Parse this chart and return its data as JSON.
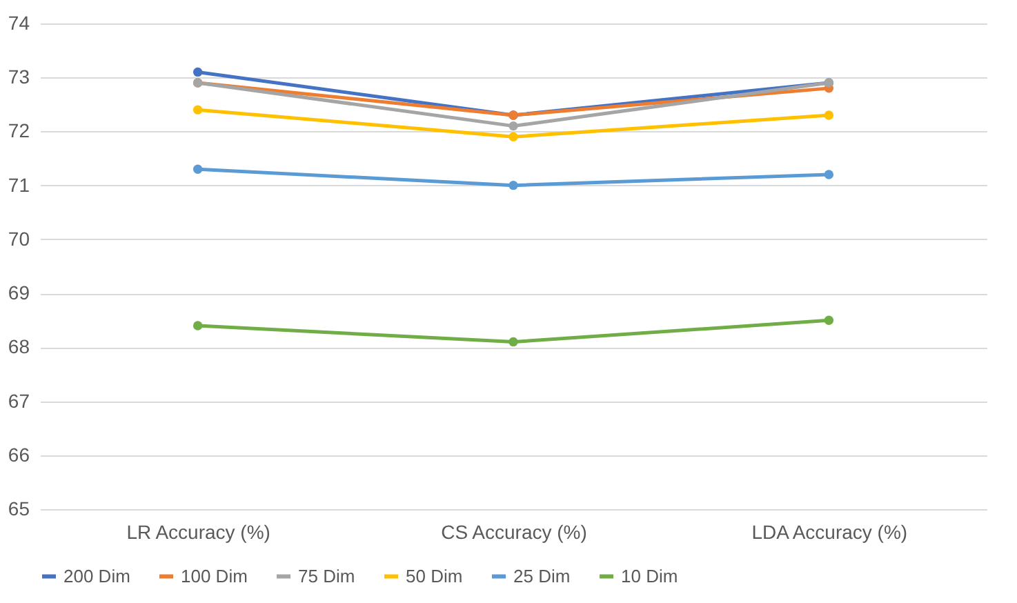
{
  "chart_data": {
    "type": "line",
    "categories": [
      "LR Accuracy (%)",
      "CS Accuracy (%)",
      "LDA Accuracy (%)"
    ],
    "series": [
      {
        "name": "200 Dim",
        "color": "#4472c4",
        "values": [
          73.1,
          72.3,
          72.9
        ]
      },
      {
        "name": "100 Dim",
        "color": "#ed7d31",
        "values": [
          72.9,
          72.3,
          72.8
        ]
      },
      {
        "name": "75 Dim",
        "color": "#a5a5a5",
        "values": [
          72.9,
          72.1,
          72.9
        ]
      },
      {
        "name": "50 Dim",
        "color": "#ffc000",
        "values": [
          72.4,
          71.9,
          72.3
        ]
      },
      {
        "name": "25 Dim",
        "color": "#5b9bd5",
        "values": [
          71.3,
          71.0,
          71.2
        ]
      },
      {
        "name": "10 Dim",
        "color": "#70ad47",
        "values": [
          68.4,
          68.1,
          68.5
        ]
      }
    ],
    "ylim": [
      65,
      74
    ],
    "yticks": [
      65,
      66,
      67,
      68,
      69,
      70,
      71,
      72,
      73,
      74
    ],
    "grid": "y",
    "legend": "bottom",
    "marker": "circle",
    "line_style": "solid"
  }
}
